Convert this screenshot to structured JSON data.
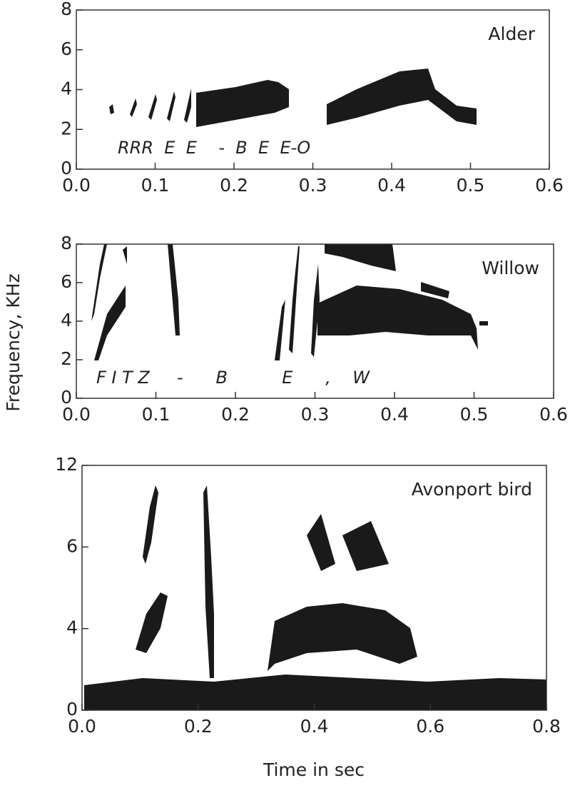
{
  "chart_data": [
    {
      "type": "spectrogram",
      "label": "Alder",
      "annotation": "RRR  E  E    -  B  E  E-O",
      "xlim": [
        0,
        0.6
      ],
      "xticks": [
        {
          "value": 0,
          "label": "0.0"
        },
        0.1,
        0.2,
        0.3,
        0.4,
        0.5,
        0.6
      ],
      "ylim": [
        0,
        8
      ],
      "yticks": [
        0,
        2,
        4,
        6,
        8
      ]
    },
    {
      "type": "spectrogram",
      "label": "Willow",
      "annotation": "F I T Z     -      B          E      ,    W",
      "ylabel": "Frequency, KHz",
      "xlim": [
        0,
        0.6
      ],
      "xticks": [
        {
          "value": 0,
          "label": "0.0"
        },
        0.1,
        0.2,
        0.3,
        0.4,
        0.5,
        0.6
      ],
      "ylim": [
        0,
        8
      ],
      "yticks": [
        0,
        2,
        4,
        6,
        8
      ]
    },
    {
      "type": "spectrogram",
      "label": "Avonport bird",
      "xlabel": "Time in sec",
      "xlim": [
        0,
        0.8
      ],
      "xticks": [
        {
          "value": 0,
          "label": "0.0"
        },
        0.2,
        0.4,
        0.6,
        0.8
      ],
      "ylim": [
        0,
        12
      ],
      "yticks": [
        0,
        4,
        6,
        12
      ]
    }
  ]
}
